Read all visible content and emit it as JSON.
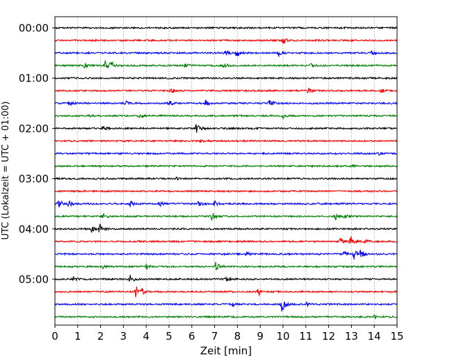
{
  "chart_data": {
    "type": "line",
    "subtype": "helicorder-seismogram",
    "title": "",
    "xlabel": "Zeit  [min]",
    "ylabel": "UTC (Lokalzeit = UTC + 01:00)",
    "xlim": [
      0,
      15
    ],
    "x_ticks": [
      "0",
      "1",
      "2",
      "3",
      "4",
      "5",
      "6",
      "7",
      "8",
      "9",
      "10",
      "11",
      "12",
      "13",
      "14",
      "15"
    ],
    "y_tick_labels": [
      "00:00",
      "01:00",
      "02:00",
      "03:00",
      "04:00",
      "05:00"
    ],
    "trace_interval_minutes": 15,
    "grid": "vertical dotted",
    "trace_colors": [
      "#000000",
      "#ff0000",
      "#0000ff",
      "#008000"
    ],
    "traces": [
      {
        "start": "00:00",
        "events": []
      },
      {
        "start": "00:15",
        "events": [
          [
            10.0,
            7
          ]
        ]
      },
      {
        "start": "00:30",
        "events": [
          [
            7.5,
            5
          ],
          [
            7.95,
            7
          ],
          [
            9.8,
            4
          ],
          [
            13.9,
            3
          ]
        ]
      },
      {
        "start": "00:45",
        "events": [
          [
            1.3,
            4
          ],
          [
            2.2,
            6
          ],
          [
            2.45,
            8
          ],
          [
            5.7,
            4
          ],
          [
            7.4,
            4
          ],
          [
            11.2,
            3
          ]
        ]
      },
      {
        "start": "01:00",
        "events": []
      },
      {
        "start": "01:15",
        "events": [
          [
            5.1,
            5
          ],
          [
            11.1,
            4
          ],
          [
            14.3,
            3
          ]
        ]
      },
      {
        "start": "01:30",
        "events": [
          [
            0.6,
            4
          ],
          [
            3.1,
            3
          ],
          [
            5.0,
            4
          ],
          [
            6.6,
            4
          ],
          [
            9.4,
            6
          ]
        ]
      },
      {
        "start": "01:45",
        "events": [
          [
            1.5,
            3
          ],
          [
            3.7,
            4
          ],
          [
            10.0,
            3
          ]
        ]
      },
      {
        "start": "02:00",
        "events": [
          [
            2.1,
            4
          ],
          [
            6.2,
            7
          ]
        ]
      },
      {
        "start": "02:15",
        "events": [
          [
            6.4,
            2
          ]
        ]
      },
      {
        "start": "02:30",
        "events": [
          [
            14.2,
            3
          ]
        ]
      },
      {
        "start": "02:45",
        "events": [
          [
            13.0,
            2
          ]
        ]
      },
      {
        "start": "03:00",
        "events": [
          [
            5.3,
            2
          ]
        ]
      },
      {
        "start": "03:15",
        "events": []
      },
      {
        "start": "03:30",
        "events": [
          [
            0.15,
            7
          ],
          [
            0.6,
            5
          ],
          [
            3.3,
            4
          ],
          [
            4.6,
            4
          ],
          [
            6.3,
            6
          ],
          [
            7.0,
            4
          ]
        ]
      },
      {
        "start": "03:45",
        "events": [
          [
            2.1,
            5
          ],
          [
            6.85,
            8
          ],
          [
            12.3,
            5
          ],
          [
            12.7,
            4
          ]
        ]
      },
      {
        "start": "04:00",
        "events": [
          [
            1.6,
            5
          ],
          [
            1.95,
            7
          ]
        ]
      },
      {
        "start": "04:15",
        "events": [
          [
            12.5,
            4
          ],
          [
            12.95,
            9
          ],
          [
            13.6,
            3
          ]
        ]
      },
      {
        "start": "04:30",
        "events": [
          [
            8.4,
            3
          ],
          [
            12.6,
            6
          ],
          [
            13.1,
            8
          ],
          [
            13.4,
            6
          ]
        ]
      },
      {
        "start": "04:45",
        "events": [
          [
            2.1,
            3
          ],
          [
            4.0,
            4
          ],
          [
            7.05,
            6
          ]
        ]
      },
      {
        "start": "05:00",
        "events": [
          [
            0.8,
            5
          ],
          [
            3.3,
            7
          ],
          [
            7.5,
            3
          ]
        ]
      },
      {
        "start": "05:15",
        "events": [
          [
            3.55,
            11
          ],
          [
            3.8,
            4
          ],
          [
            8.9,
            6
          ]
        ]
      },
      {
        "start": "05:30",
        "events": [
          [
            7.8,
            3
          ],
          [
            9.95,
            13
          ],
          [
            11.0,
            3
          ]
        ]
      },
      {
        "start": "05:45",
        "events": [
          [
            14.0,
            3
          ]
        ]
      }
    ]
  }
}
